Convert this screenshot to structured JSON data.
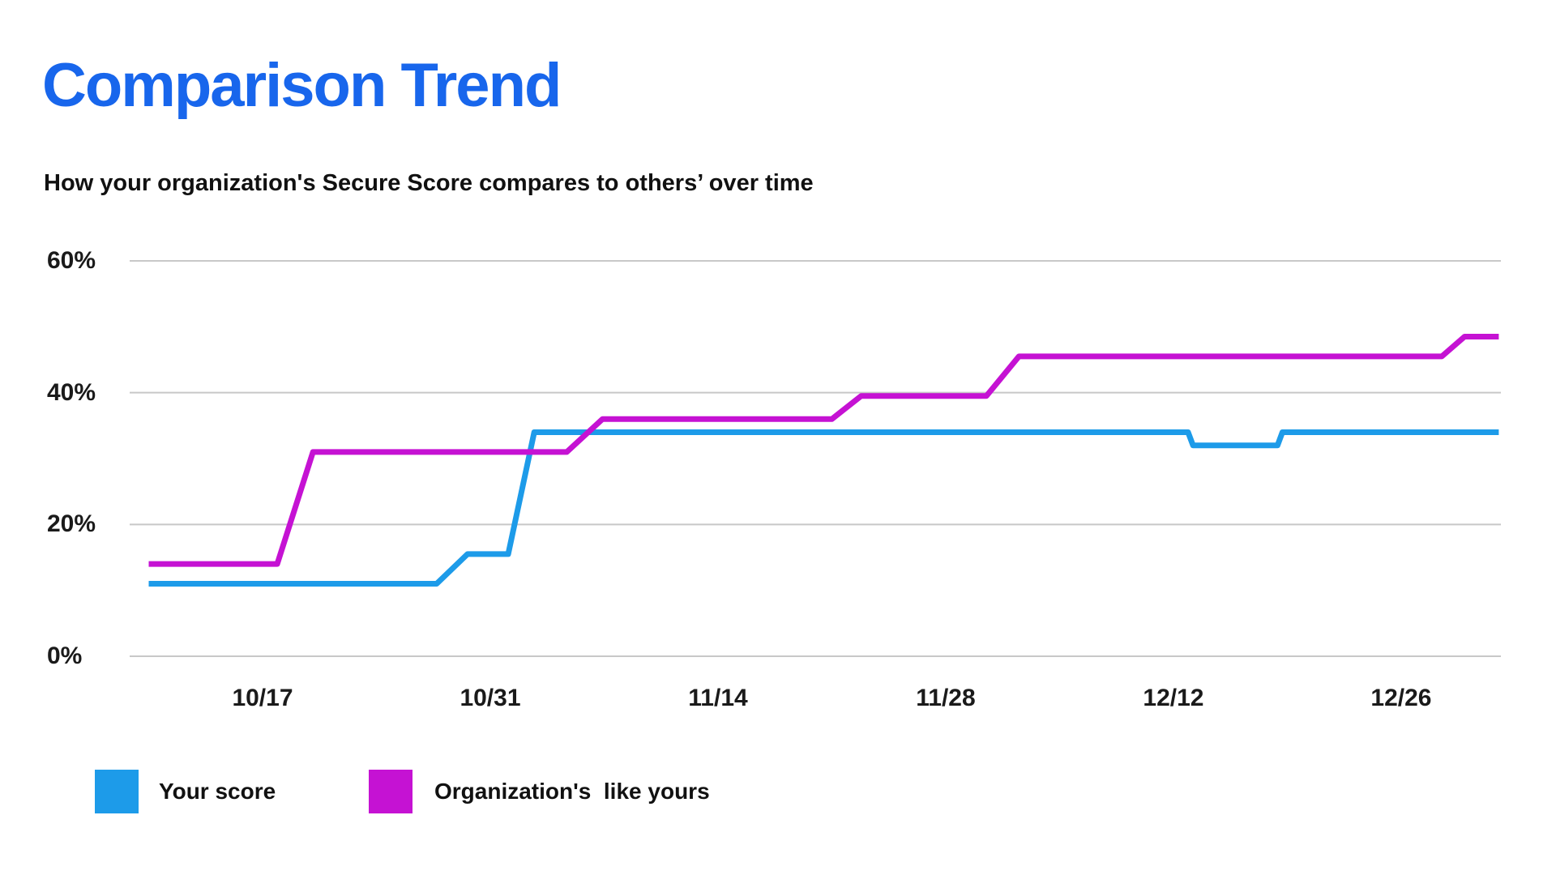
{
  "page": {
    "title": "Comparison Trend",
    "subtitle": "How your organization's Secure Score compares to others’ over time"
  },
  "colors": {
    "title_accent": "#1866EC",
    "your_score_blue": "#1D9BE9",
    "orgs_like_yours_magenta": "#C512D3",
    "gridline_gray": "#C8C8C8",
    "text": "#111111"
  },
  "chart_data": {
    "type": "line",
    "title": "Comparison Trend",
    "subtitle": "How your organization's Secure Score compares to others’ over time",
    "grid": true,
    "legend_position": "bottom-left",
    "x_axis": {
      "unit": "date",
      "tick_labels": [
        "10/17",
        "10/31",
        "11/14",
        "11/28",
        "12/12",
        "12/26"
      ],
      "tick_days": [
        7,
        21,
        35,
        49,
        63,
        77
      ],
      "range_days": [
        0,
        83
      ],
      "start_date_approx": "10/10"
    },
    "y_axis": {
      "unit": "%",
      "tick_labels": [
        "0%",
        "20%",
        "40%",
        "60%"
      ],
      "tick_values": [
        0,
        20,
        40,
        60
      ],
      "range": [
        0,
        60
      ]
    },
    "series": [
      {
        "name": "Your score",
        "color": "#1D9BE9",
        "points_days_pct": [
          [
            0,
            11
          ],
          [
            17.7,
            11
          ],
          [
            19.6,
            15.5
          ],
          [
            22.1,
            15.5
          ],
          [
            23.7,
            34
          ],
          [
            63.9,
            34
          ],
          [
            64.2,
            32
          ],
          [
            69.4,
            32
          ],
          [
            69.7,
            34
          ],
          [
            83,
            34
          ]
        ]
      },
      {
        "name": "Organization's  like yours",
        "color": "#C512D3",
        "points_days_pct": [
          [
            0,
            14
          ],
          [
            7.9,
            14
          ],
          [
            10.1,
            31
          ],
          [
            25.7,
            31
          ],
          [
            27.9,
            36
          ],
          [
            42,
            36
          ],
          [
            43.8,
            39.5
          ],
          [
            51.5,
            39.5
          ],
          [
            53.5,
            45.5
          ],
          [
            79.5,
            45.5
          ],
          [
            80.9,
            48.5
          ],
          [
            83,
            48.5
          ]
        ]
      }
    ]
  },
  "legend": {
    "items": [
      {
        "label": "Your score",
        "color": "#1D9BE9"
      },
      {
        "label": "Organization's  like yours",
        "color": "#C512D3"
      }
    ]
  }
}
